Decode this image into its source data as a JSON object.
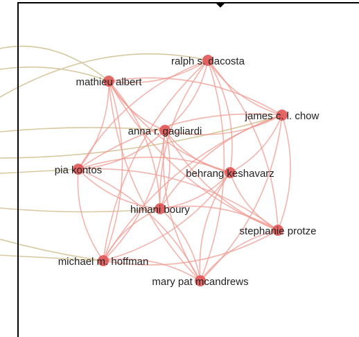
{
  "colors": {
    "edge_internal": "#ef9a90",
    "edge_external": "#d8c8a0",
    "node_fill": "#e05656",
    "frame": "#000000",
    "label": "#222222"
  },
  "nodes": [
    {
      "id": "dacosta",
      "label": "ralph s. dacosta"
    },
    {
      "id": "albert",
      "label": "mathieu albert"
    },
    {
      "id": "chow",
      "label": "james c. l. chow"
    },
    {
      "id": "gagliardi",
      "label": "anna r. gagliardi"
    },
    {
      "id": "kontos",
      "label": "pia kontos"
    },
    {
      "id": "keshavarz",
      "label": "behrang keshavarz"
    },
    {
      "id": "boury",
      "label": "himani boury"
    },
    {
      "id": "protze",
      "label": "stephanie protze"
    },
    {
      "id": "hoffman",
      "label": "michael m. hoffman"
    },
    {
      "id": "mcandrews",
      "label": "mary pat mcandrews"
    }
  ]
}
